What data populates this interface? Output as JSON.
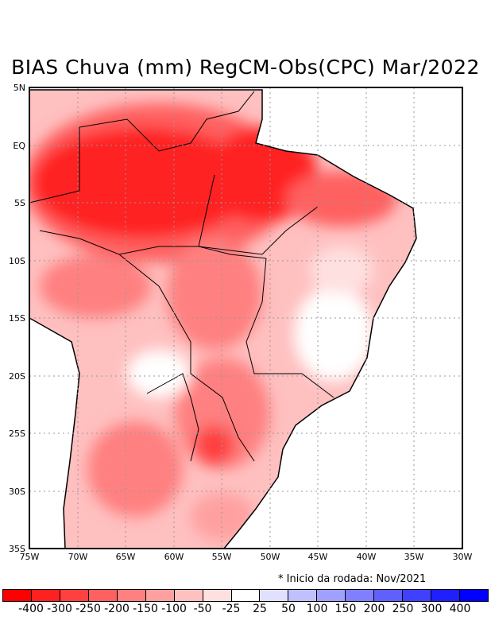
{
  "title": "BIAS Chuva (mm) RegCM-Obs(CPC) Mar/2022",
  "lat_labels": [
    "5N",
    "EQ",
    "5S",
    "10S",
    "15S",
    "20S",
    "25S",
    "30S",
    "35S"
  ],
  "lon_labels": [
    "75W",
    "70W",
    "65W",
    "60W",
    "55W",
    "50W",
    "45W",
    "40W",
    "35W",
    "30W"
  ],
  "footnote": "* Inicio da rodada: Nov/2021",
  "colorbar": {
    "colors": [
      "#ff0000",
      "#ff2020",
      "#ff4040",
      "#ff6060",
      "#ff8080",
      "#ffa0a0",
      "#ffc0c0",
      "#ffe0e0",
      "#ffffff",
      "#e0e0ff",
      "#c0c0ff",
      "#a0a0ff",
      "#8080ff",
      "#6060ff",
      "#4040ff",
      "#2020ff",
      "#0000ff"
    ],
    "labels": [
      "-400",
      "-300",
      "-250",
      "-200",
      "-150",
      "-100",
      "-50",
      "-25",
      "25",
      "50",
      "100",
      "150",
      "200",
      "250",
      "300",
      "400"
    ]
  }
}
